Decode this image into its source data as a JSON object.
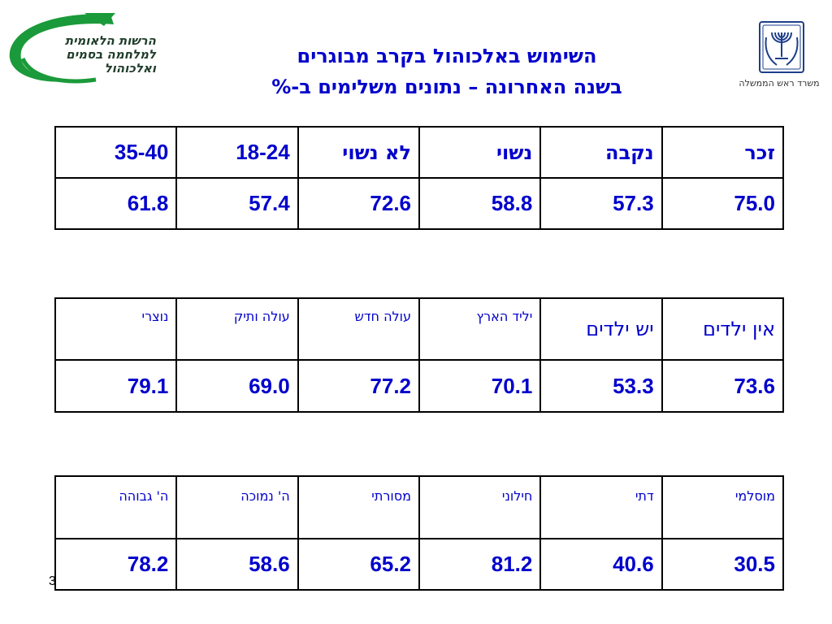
{
  "logo_left": {
    "lines": [
      "הרשות הלאומית",
      "למלחמה בסמים",
      "ואלכוהול"
    ],
    "color": "#1a9a3a"
  },
  "logo_right": {
    "caption": "משרד ראש הממשלה"
  },
  "title": {
    "line1": "השימוש באלכוהול בקרב מבוגרים",
    "line2": "בשנה האחרונה – נתונים משלימים ב-%"
  },
  "tables": [
    {
      "headers": [
        "זכר",
        "נקבה",
        "נשוי",
        "לא נשוי",
        "18-24",
        "35-40"
      ],
      "values": [
        "75.0",
        "57.3",
        "58.8",
        "72.6",
        "57.4",
        "61.8"
      ]
    },
    {
      "headers": [
        "אין ילדים",
        "יש ילדים",
        "יליד הארץ",
        "עולה חדש",
        "עולה ותיק",
        "נוצרי"
      ],
      "values": [
        "73.6",
        "53.3",
        "70.1",
        "77.2",
        "69.0",
        "79.1"
      ]
    },
    {
      "headers": [
        "מוסלמי",
        "דתי",
        "חילוני",
        "מסורתי",
        "ה' נמוכה",
        "ה' גבוהה"
      ],
      "values": [
        "30.5",
        "40.6",
        "81.2",
        "65.2",
        "58.6",
        "78.2"
      ]
    }
  ],
  "page_number": "3",
  "colors": {
    "text_blue": "#0000cc",
    "logo_green": "#1a9a3a",
    "emblem_blue": "#1e3f8a"
  }
}
